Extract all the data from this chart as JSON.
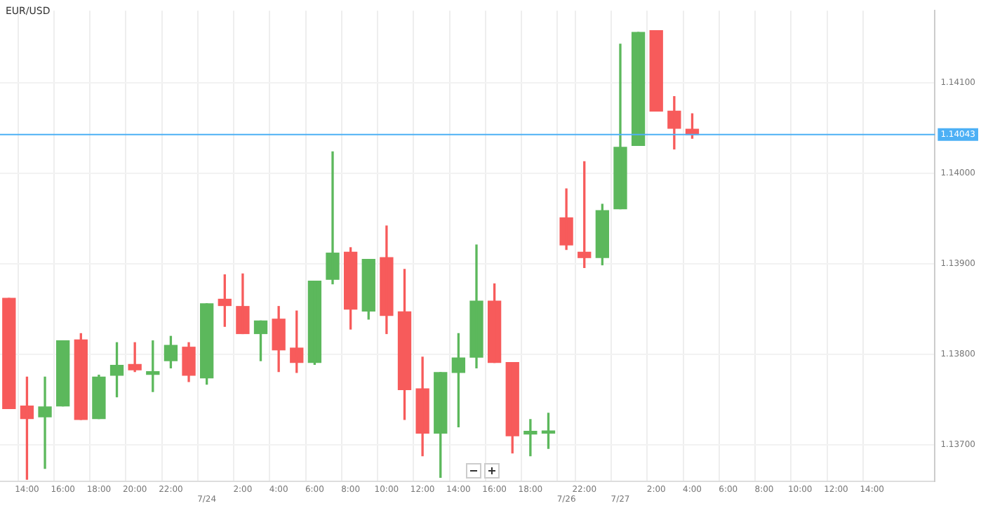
{
  "chart_data": {
    "type": "candlestick",
    "title": "EUR/USD",
    "categories": [
      null,
      "14:00",
      null,
      "16:00",
      null,
      "18:00",
      null,
      "20:00",
      null,
      "22:00",
      null,
      "7/24",
      null,
      "2:00",
      null,
      "4:00",
      null,
      "6:00",
      null,
      "8:00",
      null,
      "10:00",
      null,
      "12:00",
      null,
      "14:00",
      null,
      "16:00",
      null,
      "18:00",
      null,
      "7/26",
      "22:00",
      null,
      "7/27",
      null,
      "2:00",
      null,
      "4:00",
      null,
      "6:00",
      null,
      "8:00",
      null,
      "10:00",
      null,
      "12:00",
      null,
      "14:00",
      null,
      null,
      null
    ],
    "ohlc": [
      [
        1.13862,
        1.13862,
        1.1374,
        1.1374
      ],
      [
        1.13743,
        1.13775,
        1.13662,
        1.13729
      ],
      [
        1.13731,
        1.13775,
        1.13674,
        1.13742
      ],
      [
        1.13743,
        1.13815,
        1.13743,
        1.13815
      ],
      [
        1.13816,
        1.13823,
        1.13728,
        1.13728
      ],
      [
        1.13729,
        1.13777,
        1.13729,
        1.13775
      ],
      [
        1.13777,
        1.13813,
        1.13753,
        1.13788
      ],
      [
        1.13789,
        1.13813,
        1.13781,
        1.13783
      ],
      [
        1.13778,
        1.13815,
        1.13759,
        1.13781
      ],
      [
        1.13793,
        1.1382,
        1.13785,
        1.1381
      ],
      [
        1.13808,
        1.13813,
        1.1377,
        1.13777
      ],
      [
        1.13774,
        1.13856,
        1.13767,
        1.13856
      ],
      [
        1.13861,
        1.13888,
        1.13831,
        1.13854
      ],
      [
        1.13853,
        1.13889,
        1.13823,
        1.13823
      ],
      [
        1.13823,
        1.13837,
        1.13793,
        1.13837
      ],
      [
        1.13839,
        1.13853,
        1.13781,
        1.13805
      ],
      [
        1.13807,
        1.13848,
        1.1378,
        1.13791
      ],
      [
        1.13791,
        1.13881,
        1.13789,
        1.13881
      ],
      [
        1.13883,
        1.14024,
        1.13878,
        1.13912
      ],
      [
        1.13913,
        1.13918,
        1.13828,
        1.1385
      ],
      [
        1.13848,
        1.13905,
        1.13839,
        1.13905
      ],
      [
        1.13907,
        1.13942,
        1.13823,
        1.13843
      ],
      [
        1.13847,
        1.13894,
        1.13728,
        1.13761
      ],
      [
        1.13762,
        1.13797,
        1.13688,
        1.13713
      ],
      [
        1.13713,
        1.1378,
        1.13664,
        1.1378
      ],
      [
        1.1378,
        1.13823,
        1.1372,
        1.13796
      ],
      [
        1.13797,
        1.13921,
        1.13785,
        1.13859
      ],
      [
        1.13859,
        1.13878,
        1.13791,
        1.13791
      ],
      [
        1.13791,
        1.13791,
        1.13691,
        1.1371
      ],
      [
        1.13712,
        1.13728,
        1.13688,
        1.13715
      ],
      [
        1.13713,
        1.13735,
        1.13696,
        1.13715
      ],
      [
        1.13951,
        1.13983,
        1.13916,
        1.13921
      ],
      [
        1.13913,
        1.14013,
        1.13896,
        1.13907
      ],
      [
        1.13907,
        1.13966,
        1.13899,
        1.13959
      ],
      [
        1.13961,
        1.14143,
        1.13961,
        1.14029
      ],
      [
        1.14031,
        1.14156,
        1.14031,
        1.14156
      ],
      [
        1.14158,
        1.14158,
        1.14069,
        1.14069
      ],
      [
        1.14069,
        1.14085,
        1.14027,
        1.1405
      ],
      [
        1.14049,
        1.14066,
        1.14039,
        1.14043
      ],
      null,
      null,
      null,
      null,
      null,
      null,
      null,
      null,
      null,
      null,
      null,
      null,
      null
    ],
    "colors": [
      "#f75b5b",
      "#f75b5b",
      "#5cb85c",
      "#5cb85c",
      "#f75b5b",
      "#5cb85c",
      "#5cb85c",
      "#f75b5b",
      "#5cb85c",
      "#5cb85c",
      "#f75b5b",
      "#5cb85c",
      "#f75b5b",
      "#f75b5b",
      "#5cb85c",
      "#f75b5b",
      "#f75b5b",
      "#5cb85c",
      "#5cb85c",
      "#f75b5b",
      "#5cb85c",
      "#f75b5b",
      "#f75b5b",
      "#f75b5b",
      "#5cb85c",
      "#5cb85c",
      "#5cb85c",
      "#f75b5b",
      "#f75b5b",
      "#5cb85c",
      "#5cb85c",
      "#f75b5b",
      "#f75b5b",
      "#5cb85c",
      "#5cb85c",
      "#5cb85c",
      "#f75b5b",
      "#f75b5b",
      "#f75b5b",
      null,
      null,
      null,
      null,
      null,
      null,
      null,
      null,
      null,
      null,
      null,
      null,
      null
    ],
    "ylim": [
      1.1366,
      1.1418
    ],
    "yticks": [
      {
        "value": 1.137,
        "label": "1.13700"
      },
      {
        "value": 1.138,
        "label": "1.13800"
      },
      {
        "value": 1.139,
        "label": "1.13900"
      },
      {
        "value": 1.14,
        "label": "1.14000"
      },
      {
        "value": 1.141,
        "label": "1.14100"
      }
    ],
    "grid": true,
    "ref_lines": [
      {
        "axis": "y",
        "value": 1.14043,
        "label": "1.14043",
        "color": "#4db0f5"
      }
    ]
  }
}
